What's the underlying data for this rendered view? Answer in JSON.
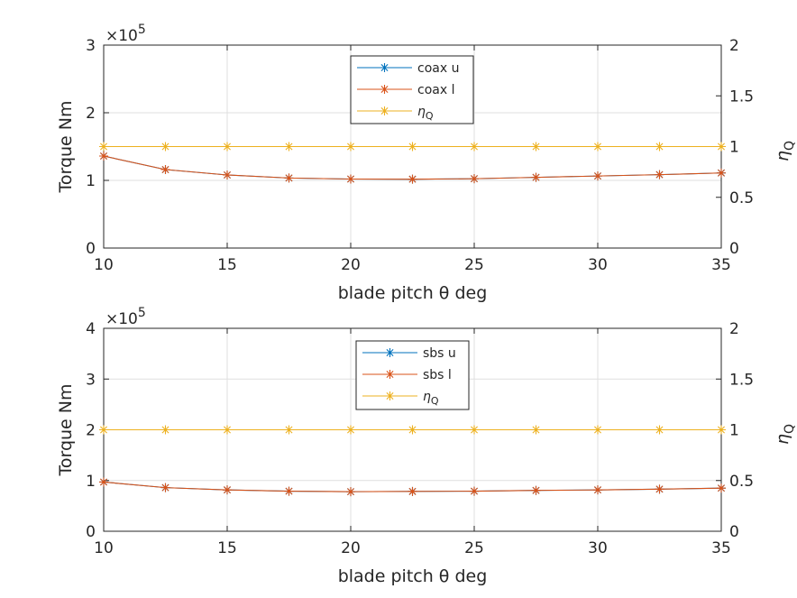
{
  "chart_data": [
    {
      "type": "line",
      "x": [
        10,
        12.5,
        15,
        17.5,
        20,
        22.5,
        25,
        27.5,
        30,
        32.5,
        35
      ],
      "xlabel": "blade pitch θ deg",
      "ylabel_left": "Torque Nm",
      "ylabel_right": "η",
      "ylabel_right_sub": "Q",
      "exponent": "×10",
      "exponent_power": "5",
      "xlim": [
        10,
        35
      ],
      "ylim_left": [
        0,
        300000
      ],
      "ylim_right": [
        0,
        2
      ],
      "xticks": [
        "10",
        "15",
        "20",
        "25",
        "30",
        "35"
      ],
      "yticks_left": [
        "0",
        "1",
        "2",
        "3"
      ],
      "yticks_right": [
        "0",
        "0.5",
        "1",
        "1.5",
        "2"
      ],
      "grid": true,
      "legend_position": "top-center",
      "series": [
        {
          "name": "coax u",
          "axis": "left",
          "color": "#0072BD",
          "values": [
            136000,
            116000,
            108000,
            103500,
            102000,
            101800,
            102500,
            104500,
            106500,
            108500,
            111000
          ]
        },
        {
          "name": "coax l",
          "axis": "left",
          "color": "#D95319",
          "values": [
            136000,
            116000,
            108000,
            103500,
            102000,
            101800,
            102500,
            104500,
            106500,
            108500,
            111000
          ]
        },
        {
          "name": "η",
          "name_sub": "Q",
          "axis": "right",
          "color": "#EDB120",
          "values": [
            1,
            1,
            1,
            1,
            1,
            1,
            1,
            1,
            1,
            1,
            1
          ]
        }
      ]
    },
    {
      "type": "line",
      "x": [
        10,
        12.5,
        15,
        17.5,
        20,
        22.5,
        25,
        27.5,
        30,
        32.5,
        35
      ],
      "xlabel": "blade pitch θ deg",
      "ylabel_left": "Torque Nm",
      "ylabel_right": "η",
      "ylabel_right_sub": "Q",
      "exponent": "×10",
      "exponent_power": "5",
      "xlim": [
        10,
        35
      ],
      "ylim_left": [
        0,
        400000
      ],
      "ylim_right": [
        0,
        2
      ],
      "xticks": [
        "10",
        "15",
        "20",
        "25",
        "30",
        "35"
      ],
      "yticks_left": [
        "0",
        "1",
        "2",
        "3",
        "4"
      ],
      "yticks_right": [
        "0",
        "0.5",
        "1",
        "1.5",
        "2"
      ],
      "grid": true,
      "legend_position": "top-center",
      "series": [
        {
          "name": "sbs u",
          "axis": "left",
          "color": "#0072BD",
          "values": [
            97000,
            86000,
            81500,
            79000,
            78000,
            78500,
            79000,
            80500,
            81500,
            83000,
            85000
          ]
        },
        {
          "name": "sbs l",
          "axis": "left",
          "color": "#D95319",
          "values": [
            97000,
            86000,
            81500,
            79000,
            78000,
            78500,
            79000,
            80500,
            81500,
            83000,
            85000
          ]
        },
        {
          "name": "η",
          "name_sub": "Q",
          "axis": "right",
          "color": "#EDB120",
          "values": [
            1,
            1,
            1,
            1,
            1,
            1,
            1,
            1,
            1,
            1,
            1
          ]
        }
      ]
    }
  ]
}
